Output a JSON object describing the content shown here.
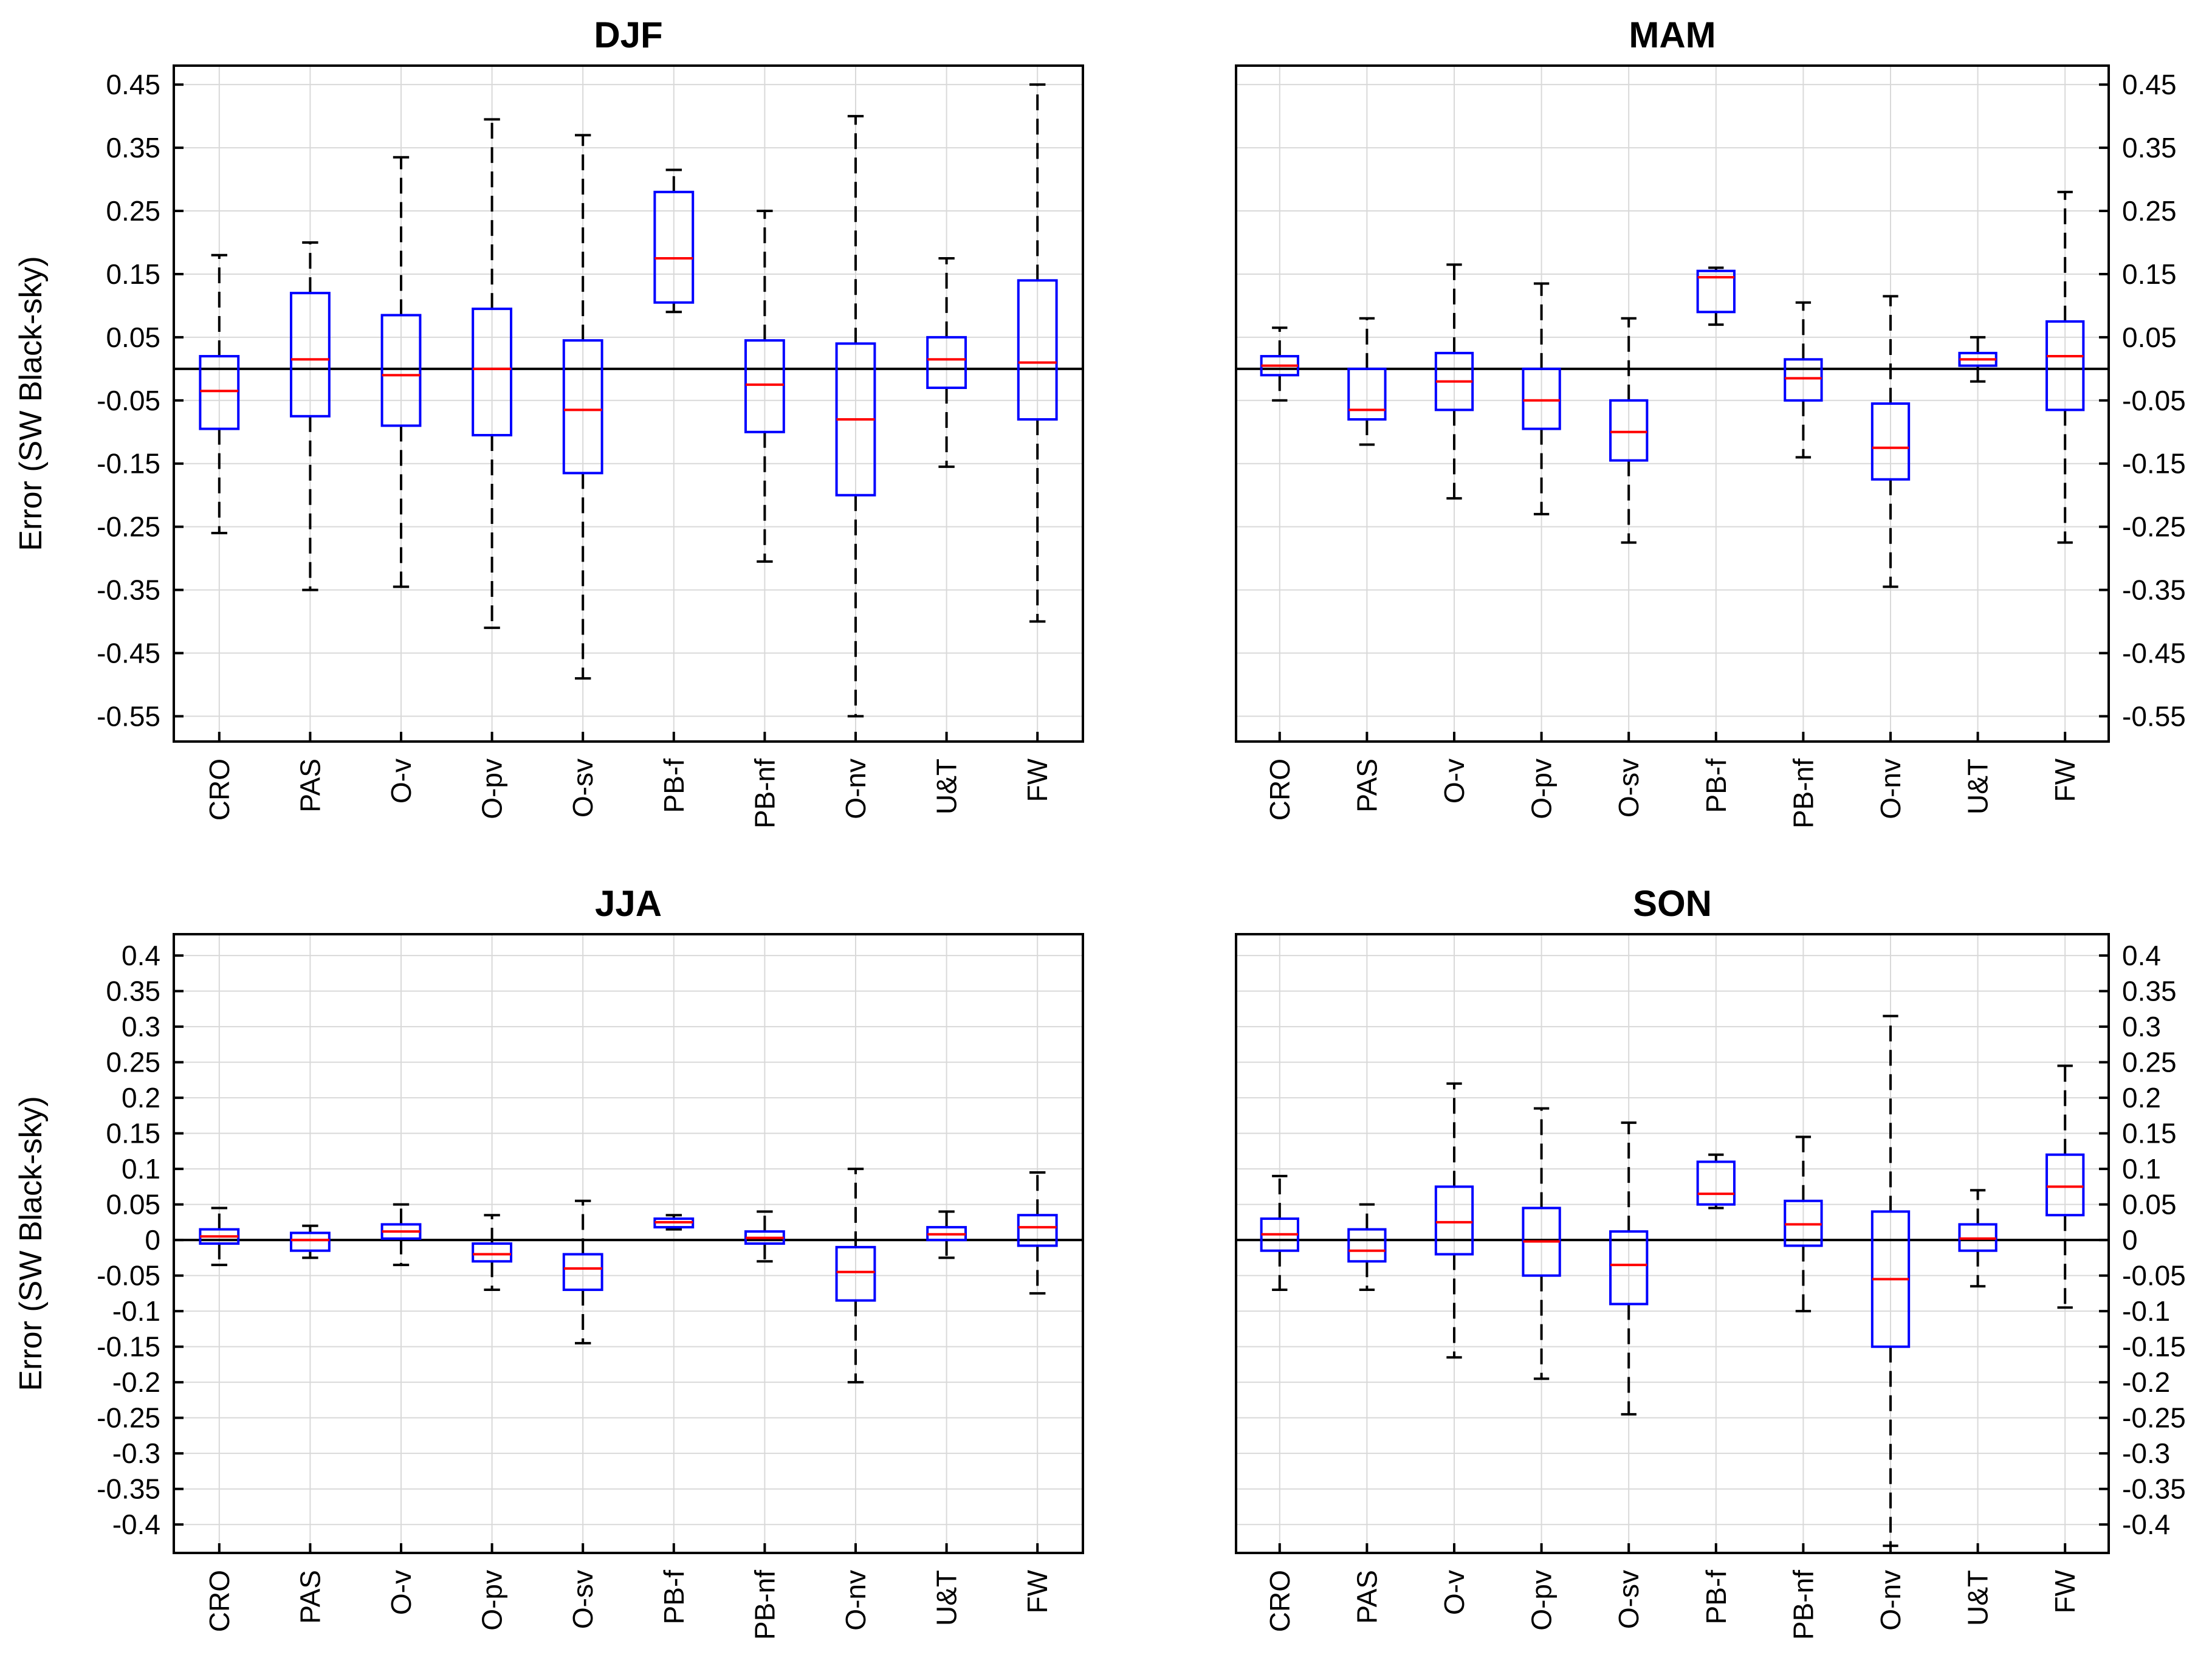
{
  "chart_data": [
    {
      "type": "box",
      "title": "DJF",
      "ylabel": "Error (SW Black-sky)",
      "ylim": [
        -0.59,
        0.48
      ],
      "yticks": [
        "0.45",
        "0.35",
        "0.25",
        "0.15",
        "0.05",
        "-0.05",
        "-0.15",
        "-0.25",
        "-0.35",
        "-0.45",
        "-0.55"
      ],
      "ytick_side": "left",
      "categories": [
        "CRO",
        "PAS",
        "O-v",
        "O-pv",
        "O-sv",
        "PB-f",
        "PB-nf",
        "O-nv",
        "U&T",
        "FW"
      ],
      "boxes": [
        {
          "whisker_low": -0.26,
          "q1": -0.095,
          "median": -0.035,
          "q3": 0.02,
          "whisker_high": 0.18
        },
        {
          "whisker_low": -0.35,
          "q1": -0.075,
          "median": 0.015,
          "q3": 0.12,
          "whisker_high": 0.2
        },
        {
          "whisker_low": -0.345,
          "q1": -0.09,
          "median": -0.01,
          "q3": 0.085,
          "whisker_high": 0.335
        },
        {
          "whisker_low": -0.41,
          "q1": -0.105,
          "median": 0.0,
          "q3": 0.095,
          "whisker_high": 0.395
        },
        {
          "whisker_low": -0.49,
          "q1": -0.165,
          "median": -0.065,
          "q3": 0.045,
          "whisker_high": 0.37
        },
        {
          "whisker_low": 0.09,
          "q1": 0.105,
          "median": 0.175,
          "q3": 0.28,
          "whisker_high": 0.315
        },
        {
          "whisker_low": -0.305,
          "q1": -0.1,
          "median": -0.025,
          "q3": 0.045,
          "whisker_high": 0.25
        },
        {
          "whisker_low": -0.55,
          "q1": -0.2,
          "median": -0.08,
          "q3": 0.04,
          "whisker_high": 0.4
        },
        {
          "whisker_low": -0.155,
          "q1": -0.03,
          "median": 0.015,
          "q3": 0.05,
          "whisker_high": 0.175
        },
        {
          "whisker_low": -0.4,
          "q1": -0.08,
          "median": 0.01,
          "q3": 0.14,
          "whisker_high": 0.45
        }
      ]
    },
    {
      "type": "box",
      "title": "MAM",
      "ylabel": "",
      "ylim": [
        -0.59,
        0.48
      ],
      "yticks": [
        "0.45",
        "0.35",
        "0.25",
        "0.15",
        "0.05",
        "-0.05",
        "-0.15",
        "-0.25",
        "-0.35",
        "-0.45",
        "-0.55"
      ],
      "ytick_side": "right",
      "categories": [
        "CRO",
        "PAS",
        "O-v",
        "O-pv",
        "O-sv",
        "PB-f",
        "PB-nf",
        "O-nv",
        "U&T",
        "FW"
      ],
      "boxes": [
        {
          "whisker_low": -0.05,
          "q1": -0.01,
          "median": 0.005,
          "q3": 0.02,
          "whisker_high": 0.065
        },
        {
          "whisker_low": -0.12,
          "q1": -0.08,
          "median": -0.065,
          "q3": 0.0,
          "whisker_high": 0.08
        },
        {
          "whisker_low": -0.205,
          "q1": -0.065,
          "median": -0.02,
          "q3": 0.025,
          "whisker_high": 0.165
        },
        {
          "whisker_low": -0.23,
          "q1": -0.095,
          "median": -0.05,
          "q3": 0.0,
          "whisker_high": 0.135
        },
        {
          "whisker_low": -0.275,
          "q1": -0.145,
          "median": -0.1,
          "q3": -0.05,
          "whisker_high": 0.08
        },
        {
          "whisker_low": 0.07,
          "q1": 0.09,
          "median": 0.145,
          "q3": 0.155,
          "whisker_high": 0.16
        },
        {
          "whisker_low": -0.14,
          "q1": -0.05,
          "median": -0.015,
          "q3": 0.015,
          "whisker_high": 0.105
        },
        {
          "whisker_low": -0.345,
          "q1": -0.175,
          "median": -0.125,
          "q3": -0.055,
          "whisker_high": 0.115
        },
        {
          "whisker_low": -0.02,
          "q1": 0.005,
          "median": 0.015,
          "q3": 0.025,
          "whisker_high": 0.05
        },
        {
          "whisker_low": -0.275,
          "q1": -0.065,
          "median": 0.02,
          "q3": 0.075,
          "whisker_high": 0.28
        }
      ]
    },
    {
      "type": "box",
      "title": "JJA",
      "ylabel": "Error (SW Black-sky)",
      "ylim": [
        -0.44,
        0.43
      ],
      "yticks": [
        "0.4",
        "0.35",
        "0.3",
        "0.25",
        "0.2",
        "0.15",
        "0.1",
        "0.05",
        "0",
        "-0.05",
        "-0.1",
        "-0.15",
        "-0.2",
        "-0.25",
        "-0.3",
        "-0.35",
        "-0.4"
      ],
      "ytick_side": "left",
      "categories": [
        "CRO",
        "PAS",
        "O-v",
        "O-pv",
        "O-sv",
        "PB-f",
        "PB-nf",
        "O-nv",
        "U&T",
        "FW"
      ],
      "boxes": [
        {
          "whisker_low": -0.035,
          "q1": -0.005,
          "median": 0.005,
          "q3": 0.015,
          "whisker_high": 0.045
        },
        {
          "whisker_low": -0.025,
          "q1": -0.015,
          "median": 0.0,
          "q3": 0.01,
          "whisker_high": 0.02
        },
        {
          "whisker_low": -0.035,
          "q1": 0.002,
          "median": 0.012,
          "q3": 0.022,
          "whisker_high": 0.05
        },
        {
          "whisker_low": -0.07,
          "q1": -0.03,
          "median": -0.02,
          "q3": -0.005,
          "whisker_high": 0.035
        },
        {
          "whisker_low": -0.145,
          "q1": -0.07,
          "median": -0.04,
          "q3": -0.02,
          "whisker_high": 0.055
        },
        {
          "whisker_low": 0.015,
          "q1": 0.018,
          "median": 0.025,
          "q3": 0.03,
          "whisker_high": 0.035
        },
        {
          "whisker_low": -0.03,
          "q1": -0.005,
          "median": 0.003,
          "q3": 0.012,
          "whisker_high": 0.04
        },
        {
          "whisker_low": -0.2,
          "q1": -0.085,
          "median": -0.045,
          "q3": -0.01,
          "whisker_high": 0.1
        },
        {
          "whisker_low": -0.025,
          "q1": 0.0,
          "median": 0.008,
          "q3": 0.018,
          "whisker_high": 0.04
        },
        {
          "whisker_low": -0.075,
          "q1": -0.008,
          "median": 0.018,
          "q3": 0.035,
          "whisker_high": 0.095
        }
      ]
    },
    {
      "type": "box",
      "title": "SON",
      "ylabel": "",
      "ylim": [
        -0.44,
        0.43
      ],
      "yticks": [
        "0.4",
        "0.35",
        "0.3",
        "0.25",
        "0.2",
        "0.15",
        "0.1",
        "0.05",
        "0",
        "-0.05",
        "-0.1",
        "-0.15",
        "-0.2",
        "-0.25",
        "-0.3",
        "-0.35",
        "-0.4"
      ],
      "ytick_side": "right",
      "categories": [
        "CRO",
        "PAS",
        "O-v",
        "O-pv",
        "O-sv",
        "PB-f",
        "PB-nf",
        "O-nv",
        "U&T",
        "FW"
      ],
      "boxes": [
        {
          "whisker_low": -0.07,
          "q1": -0.015,
          "median": 0.008,
          "q3": 0.03,
          "whisker_high": 0.09
        },
        {
          "whisker_low": -0.07,
          "q1": -0.03,
          "median": -0.015,
          "q3": 0.015,
          "whisker_high": 0.05
        },
        {
          "whisker_low": -0.165,
          "q1": -0.02,
          "median": 0.025,
          "q3": 0.075,
          "whisker_high": 0.22
        },
        {
          "whisker_low": -0.195,
          "q1": -0.05,
          "median": -0.002,
          "q3": 0.045,
          "whisker_high": 0.185
        },
        {
          "whisker_low": -0.245,
          "q1": -0.09,
          "median": -0.035,
          "q3": 0.012,
          "whisker_high": 0.165
        },
        {
          "whisker_low": 0.045,
          "q1": 0.05,
          "median": 0.065,
          "q3": 0.11,
          "whisker_high": 0.12
        },
        {
          "whisker_low": -0.1,
          "q1": -0.008,
          "median": 0.022,
          "q3": 0.055,
          "whisker_high": 0.145
        },
        {
          "whisker_low": -0.43,
          "q1": -0.15,
          "median": -0.055,
          "q3": 0.04,
          "whisker_high": 0.315
        },
        {
          "whisker_low": -0.065,
          "q1": -0.015,
          "median": 0.002,
          "q3": 0.022,
          "whisker_high": 0.07
        },
        {
          "whisker_low": -0.095,
          "q1": 0.035,
          "median": 0.075,
          "q3": 0.12,
          "whisker_high": 0.245
        }
      ]
    }
  ],
  "colors": {
    "box": "#0000ff",
    "median": "#ff0000",
    "whisker": "#000000",
    "grid": "#d9d9d9",
    "zero_line": "#000000"
  }
}
